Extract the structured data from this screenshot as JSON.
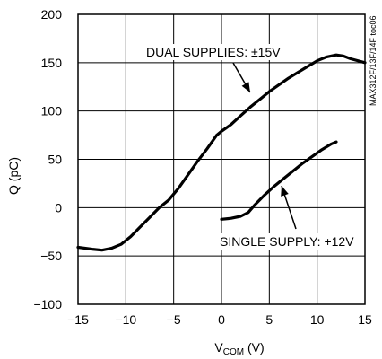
{
  "chart_data": {
    "type": "line",
    "xlabel_main": "V",
    "xlabel_sub": "COM",
    "xlabel_unit": " (V)",
    "ylabel": "Q (pC)",
    "xlim": [
      -15,
      15
    ],
    "ylim": [
      -100,
      200
    ],
    "x_ticks": [
      "-15",
      "-10",
      "-5",
      "0",
      "5",
      "10",
      "15"
    ],
    "y_ticks": [
      "-100",
      "-50",
      "0",
      "50",
      "100",
      "150",
      "200"
    ],
    "grid": true,
    "side_label": "MAX312F/13F/14F toc06",
    "series": [
      {
        "name": "DUAL SUPPLIES: ±15V",
        "points": [
          [
            -15,
            -41
          ],
          [
            -13.5,
            -43
          ],
          [
            -12.5,
            -44
          ],
          [
            -11.5,
            -42
          ],
          [
            -10.5,
            -38
          ],
          [
            -9.5,
            -30
          ],
          [
            -8.5,
            -20
          ],
          [
            -7.5,
            -10
          ],
          [
            -6.5,
            0
          ],
          [
            -5.5,
            8
          ],
          [
            -4.5,
            20
          ],
          [
            -3.5,
            34
          ],
          [
            -2.5,
            48
          ],
          [
            -1.5,
            61
          ],
          [
            -0.5,
            75
          ],
          [
            0,
            79
          ],
          [
            1,
            86
          ],
          [
            2,
            95
          ],
          [
            3,
            104
          ],
          [
            4,
            112
          ],
          [
            5,
            120
          ],
          [
            6,
            127
          ],
          [
            7,
            134
          ],
          [
            8,
            140
          ],
          [
            9,
            146
          ],
          [
            10,
            152
          ],
          [
            11,
            156
          ],
          [
            12,
            158
          ],
          [
            12.7,
            157
          ],
          [
            13.5,
            154
          ],
          [
            15,
            150
          ]
        ]
      },
      {
        "name": "SINGLE SUPPLY: +12V",
        "points": [
          [
            0,
            -12
          ],
          [
            1,
            -11
          ],
          [
            2,
            -9
          ],
          [
            2.8,
            -5
          ],
          [
            3.5,
            3
          ],
          [
            4.5,
            13
          ],
          [
            5.5,
            22
          ],
          [
            6.5,
            30
          ],
          [
            7.5,
            38
          ],
          [
            8.5,
            46
          ],
          [
            9.5,
            53
          ],
          [
            10.5,
            60
          ],
          [
            11.5,
            66
          ],
          [
            12,
            68
          ]
        ]
      }
    ],
    "annotations": [
      {
        "text": "DUAL SUPPLIES: ±15V",
        "target": [
          2.5,
          103
        ]
      },
      {
        "text": "SINGLE SUPPLY: +12V",
        "target": [
          6,
          27
        ]
      }
    ]
  }
}
